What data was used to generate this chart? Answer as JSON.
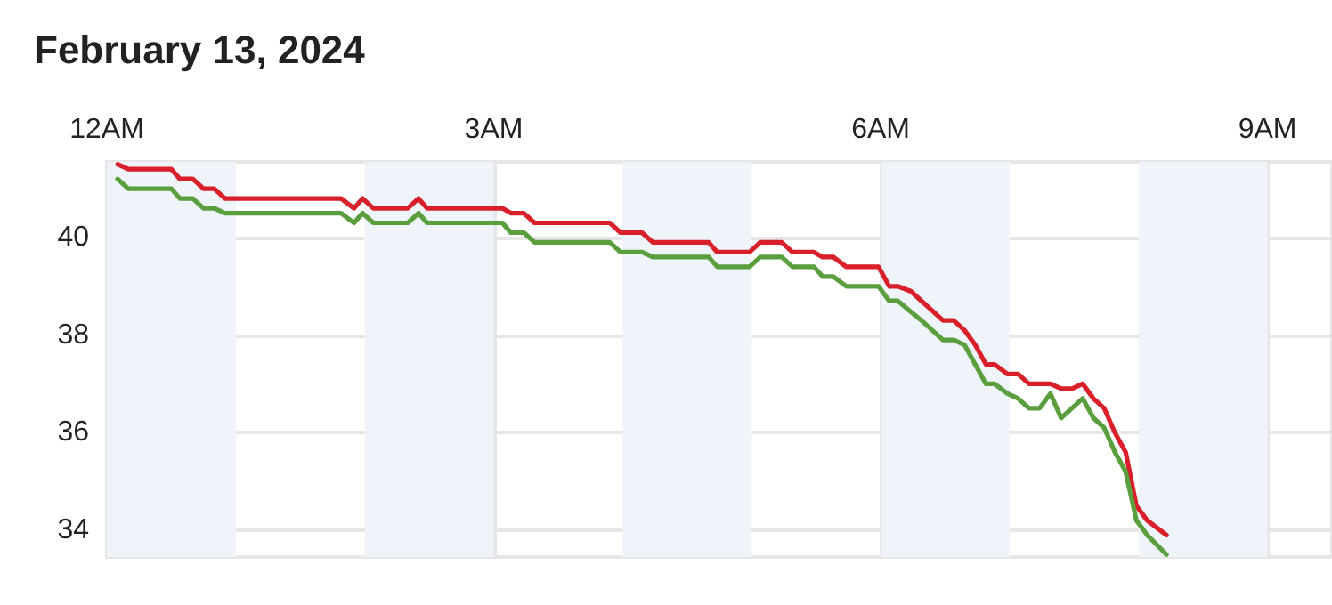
{
  "chart_data": {
    "type": "line",
    "title": "February 13, 2024",
    "xlim": [
      "2024-02-13T00:00",
      "2024-02-13T09:30"
    ],
    "xticks": [
      {
        "value": "2024-02-13T00:00",
        "label": "12AM"
      },
      {
        "value": "2024-02-13T03:00",
        "label": "3AM"
      },
      {
        "value": "2024-02-13T06:00",
        "label": "6AM"
      },
      {
        "value": "2024-02-13T09:00",
        "label": "9AM"
      }
    ],
    "ylim": [
      33.45,
      41.55
    ],
    "yticks": [
      34,
      36,
      38,
      40
    ],
    "grid": true,
    "bands": [
      {
        "axis": "x",
        "from": "2024-02-13T00:00",
        "to": "2024-02-13T01:00",
        "color": "#eef4f9"
      },
      {
        "axis": "x",
        "from": "2024-02-13T02:00",
        "to": "2024-02-13T03:00",
        "color": "#eef4f9"
      },
      {
        "axis": "x",
        "from": "2024-02-13T04:00",
        "to": "2024-02-13T05:00",
        "color": "#eef4f9"
      },
      {
        "axis": "x",
        "from": "2024-02-13T06:00",
        "to": "2024-02-13T07:00",
        "color": "#eef4f9"
      },
      {
        "axis": "x",
        "from": "2024-02-13T08:00",
        "to": "2024-02-13T09:00",
        "color": "#eef4f9"
      }
    ],
    "series": [
      {
        "color": "#d9202a",
        "x": [
          "2024-02-13T00:05",
          "2024-02-13T00:10",
          "2024-02-13T00:30",
          "2024-02-13T00:34",
          "2024-02-13T00:40",
          "2024-02-13T00:45",
          "2024-02-13T00:50",
          "2024-02-13T00:55",
          "2024-02-13T01:49",
          "2024-02-13T01:55",
          "2024-02-13T01:59",
          "2024-02-13T02:04",
          "2024-02-13T02:20",
          "2024-02-13T02:25",
          "2024-02-13T02:29",
          "2024-02-13T03:04",
          "2024-02-13T03:08",
          "2024-02-13T03:14",
          "2024-02-13T03:19",
          "2024-02-13T03:54",
          "2024-02-13T03:59",
          "2024-02-13T04:09",
          "2024-02-13T04:14",
          "2024-02-13T04:40",
          "2024-02-13T04:44",
          "2024-02-13T04:59",
          "2024-02-13T05:04",
          "2024-02-13T05:14",
          "2024-02-13T05:19",
          "2024-02-13T05:29",
          "2024-02-13T05:33",
          "2024-02-13T05:38",
          "2024-02-13T05:44",
          "2024-02-13T05:59",
          "2024-02-13T06:04",
          "2024-02-13T06:08",
          "2024-02-13T06:14",
          "2024-02-13T06:19",
          "2024-02-13T06:24",
          "2024-02-13T06:29",
          "2024-02-13T06:34",
          "2024-02-13T06:39",
          "2024-02-13T06:44",
          "2024-02-13T06:49",
          "2024-02-13T06:53",
          "2024-02-13T06:59",
          "2024-02-13T07:04",
          "2024-02-13T07:09",
          "2024-02-13T07:19",
          "2024-02-13T07:24",
          "2024-02-13T07:29",
          "2024-02-13T07:34",
          "2024-02-13T07:39",
          "2024-02-13T07:44",
          "2024-02-13T07:49",
          "2024-02-13T07:54",
          "2024-02-13T07:59",
          "2024-02-13T08:04",
          "2024-02-13T08:13"
        ],
        "values": [
          41.5,
          41.4,
          41.4,
          41.2,
          41.2,
          41.0,
          41.0,
          40.8,
          40.8,
          40.6,
          40.8,
          40.6,
          40.6,
          40.8,
          40.6,
          40.6,
          40.5,
          40.5,
          40.3,
          40.3,
          40.1,
          40.1,
          39.9,
          39.9,
          39.7,
          39.7,
          39.9,
          39.9,
          39.7,
          39.7,
          39.6,
          39.6,
          39.4,
          39.4,
          39.0,
          39.0,
          38.9,
          38.7,
          38.5,
          38.3,
          38.3,
          38.1,
          37.8,
          37.4,
          37.4,
          37.2,
          37.2,
          37.0,
          37.0,
          36.9,
          36.9,
          37.0,
          36.7,
          36.5,
          36.0,
          35.6,
          34.5,
          34.2,
          33.9
        ]
      },
      {
        "color": "#5a9e3e",
        "x": [
          "2024-02-13T00:05",
          "2024-02-13T00:10",
          "2024-02-13T00:30",
          "2024-02-13T00:34",
          "2024-02-13T00:40",
          "2024-02-13T00:45",
          "2024-02-13T00:50",
          "2024-02-13T00:55",
          "2024-02-13T01:49",
          "2024-02-13T01:55",
          "2024-02-13T01:59",
          "2024-02-13T02:04",
          "2024-02-13T02:20",
          "2024-02-13T02:25",
          "2024-02-13T02:29",
          "2024-02-13T03:04",
          "2024-02-13T03:08",
          "2024-02-13T03:14",
          "2024-02-13T03:19",
          "2024-02-13T03:54",
          "2024-02-13T03:59",
          "2024-02-13T04:09",
          "2024-02-13T04:14",
          "2024-02-13T04:40",
          "2024-02-13T04:44",
          "2024-02-13T04:59",
          "2024-02-13T05:04",
          "2024-02-13T05:14",
          "2024-02-13T05:19",
          "2024-02-13T05:29",
          "2024-02-13T05:33",
          "2024-02-13T05:38",
          "2024-02-13T05:44",
          "2024-02-13T05:59",
          "2024-02-13T06:04",
          "2024-02-13T06:08",
          "2024-02-13T06:19",
          "2024-02-13T06:24",
          "2024-02-13T06:29",
          "2024-02-13T06:34",
          "2024-02-13T06:39",
          "2024-02-13T06:44",
          "2024-02-13T06:49",
          "2024-02-13T06:53",
          "2024-02-13T06:59",
          "2024-02-13T07:04",
          "2024-02-13T07:09",
          "2024-02-13T07:14",
          "2024-02-13T07:19",
          "2024-02-13T07:24",
          "2024-02-13T07:29",
          "2024-02-13T07:34",
          "2024-02-13T07:39",
          "2024-02-13T07:44",
          "2024-02-13T07:49",
          "2024-02-13T07:54",
          "2024-02-13T07:59",
          "2024-02-13T08:04",
          "2024-02-13T08:13"
        ],
        "values": [
          41.2,
          41.0,
          41.0,
          40.8,
          40.8,
          40.6,
          40.6,
          40.5,
          40.5,
          40.3,
          40.5,
          40.3,
          40.3,
          40.5,
          40.3,
          40.3,
          40.1,
          40.1,
          39.9,
          39.9,
          39.7,
          39.7,
          39.6,
          39.6,
          39.4,
          39.4,
          39.6,
          39.6,
          39.4,
          39.4,
          39.2,
          39.2,
          39.0,
          39.0,
          38.7,
          38.7,
          38.3,
          38.1,
          37.9,
          37.9,
          37.8,
          37.4,
          37.0,
          37.0,
          36.8,
          36.7,
          36.5,
          36.5,
          36.8,
          36.3,
          36.5,
          36.7,
          36.3,
          36.1,
          35.6,
          35.2,
          34.2,
          33.9,
          33.5
        ]
      }
    ]
  }
}
